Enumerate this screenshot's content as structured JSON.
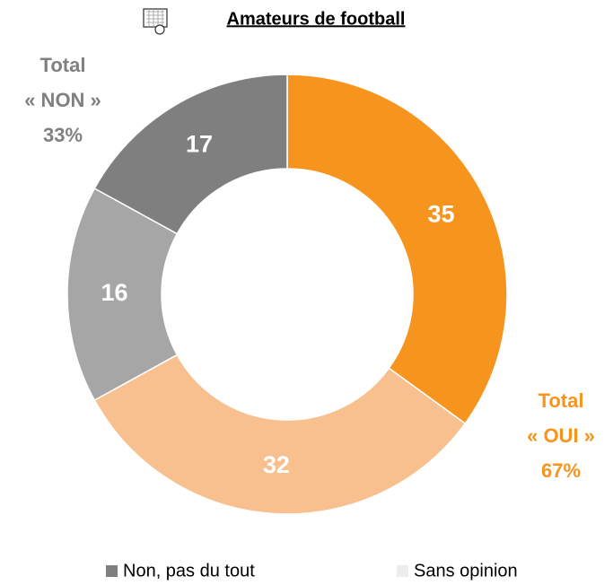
{
  "chart_data": {
    "type": "donut",
    "title": "Amateurs de football",
    "values": [
      35,
      32,
      16,
      17
    ],
    "colors": [
      "#f7941d",
      "#f9c08f",
      "#a6a6a6",
      "#7f7f7f"
    ],
    "annotations": [
      {
        "lines": [
          "Total",
          "« NON »",
          "33%"
        ],
        "color": "#808080"
      },
      {
        "lines": [
          "Total",
          "«  OUI »",
          "67%"
        ],
        "color": "#f7941d"
      }
    ],
    "legend": [
      {
        "label": "Non, pas du tout",
        "color": "#7f7f7f"
      },
      {
        "label": "Sans opinion",
        "color": "#ededed"
      }
    ]
  }
}
